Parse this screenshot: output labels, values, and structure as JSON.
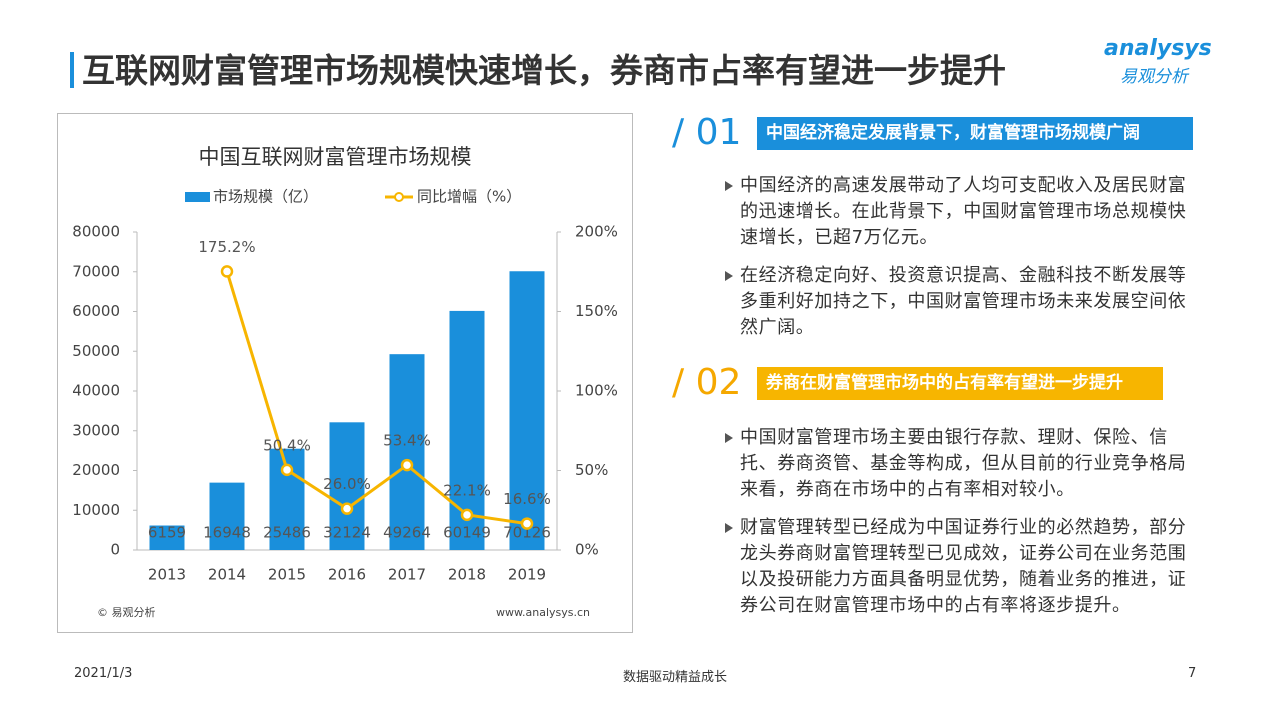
{
  "slide_title": "互联网财富管理市场规模快速增长，券商市占率有望进一步提升",
  "logo": {
    "latin": "analysys",
    "cn": "易观分析"
  },
  "chart_data": {
    "type": "bar",
    "title": "中国互联网财富管理市场规模",
    "categories": [
      "2013",
      "2014",
      "2015",
      "2016",
      "2017",
      "2018",
      "2019"
    ],
    "series": [
      {
        "name": "市场规模（亿）",
        "type": "bar",
        "color": "#1a8fdb",
        "values": [
          6159,
          16948,
          25486,
          32124,
          49264,
          60149,
          70126
        ]
      },
      {
        "name": "同比增幅（%）",
        "type": "line",
        "axis": "y2",
        "color": "#f7b500",
        "values": [
          null,
          175.2,
          50.4,
          26.0,
          53.4,
          22.1,
          16.6
        ],
        "value_labels": [
          null,
          "175.2%",
          "50.4%",
          "26.0%",
          "53.4%",
          "22.1%",
          "16.6%"
        ]
      }
    ],
    "ylim": [
      0,
      80000
    ],
    "yticks": [
      0,
      10000,
      20000,
      30000,
      40000,
      50000,
      60000,
      70000,
      80000
    ],
    "y2lim": [
      0,
      200
    ],
    "y2ticks": [
      {
        "value": 0,
        "label": "0%"
      },
      {
        "value": 50,
        "label": "50%"
      },
      {
        "value": 100,
        "label": "100%"
      },
      {
        "value": 150,
        "label": "150%"
      },
      {
        "value": 200,
        "label": "200%"
      }
    ],
    "source": "© 易观分析",
    "website": "www.analysys.cn"
  },
  "sections": [
    {
      "number": "/ 01",
      "heading": "中国经济稳定发展背景下，财富管理市场规模广阔",
      "bullets": [
        "中国经济的高速发展带动了人均可支配收入及居民财富的迅速增长。在此背景下，中国财富管理市场总规模快速增长，已超7万亿元。",
        "在经济稳定向好、投资意识提高、金融科技不断发展等多重利好加持之下，中国财富管理市场未来发展空间依然广阔。"
      ]
    },
    {
      "number": "/ 02",
      "heading": "券商在财富管理市场中的占有率有望进一步提升",
      "bullets": [
        "中国财富管理市场主要由银行存款、理财、保险、信托、券商资管、基金等构成，但从目前的行业竞争格局来看，券商在市场中的占有率相对较小。",
        "财富管理转型已经成为中国证券行业的必然趋势，部分龙头券商财富管理转型已见成效，证券公司在业务范围以及投研能力方面具备明显优势，随着业务的推进，证券公司在财富管理市场中的占有率将逐步提升。"
      ]
    }
  ],
  "footer": {
    "date": "2021/1/3",
    "center": "数据驱动精益成长",
    "page": "7"
  }
}
